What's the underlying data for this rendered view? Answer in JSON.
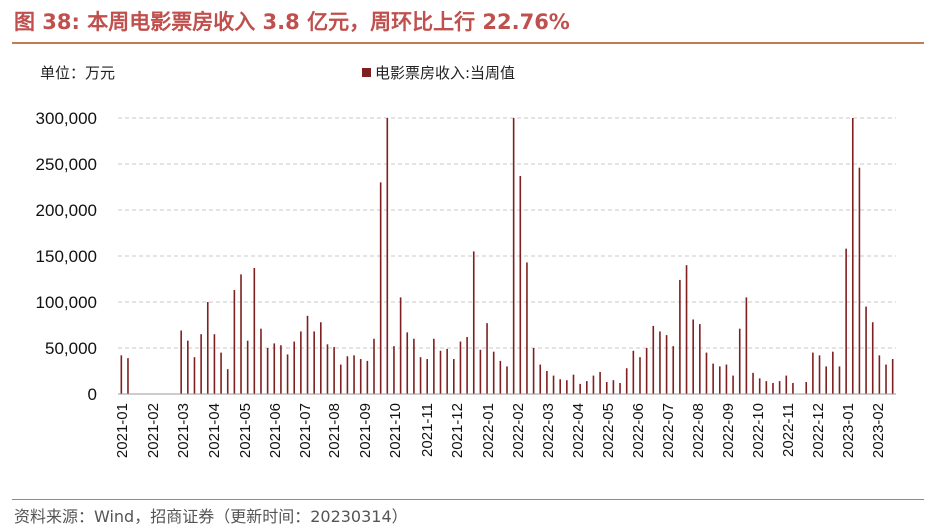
{
  "header": {
    "figure_no": "图 38:",
    "title": "本周电影票房收入 3.8 亿元，周环比上行 22.76%"
  },
  "footer": {
    "source": "资料来源：Wind，招商证券（更新时间：20230314）"
  },
  "chart_data": {
    "type": "bar",
    "unit_label": "单位：万元",
    "legend": [
      {
        "name": "电影票房收入:当周值",
        "color": "#7f1f1f"
      }
    ],
    "legend_placement": "top-center",
    "ylim": [
      0,
      300000
    ],
    "yticks": [
      0,
      50000,
      100000,
      150000,
      200000,
      250000,
      300000
    ],
    "ytick_labels": [
      "0",
      "50,000",
      "100,000",
      "150,000",
      "200,000",
      "250,000",
      "300,000"
    ],
    "grid": "horizontal-dashed",
    "x_tick_labels": [
      "2021-01",
      "2021-02",
      "2021-03",
      "2021-04",
      "2021-05",
      "2021-06",
      "2021-07",
      "2021-08",
      "2021-09",
      "2021-10",
      "2021-11",
      "2021-12",
      "2022-01",
      "2022-02",
      "2022-03",
      "2022-04",
      "2022-05",
      "2022-06",
      "2022-07",
      "2022-08",
      "2022-09",
      "2022-10",
      "2022-11",
      "2022-12",
      "2023-01",
      "2023-02"
    ],
    "series": [
      {
        "name": "电影票房收入:当周值",
        "color": "#7f1f1f",
        "values": [
          42000,
          39000,
          0,
          0,
          0,
          0,
          0,
          0,
          0,
          69000,
          58000,
          40000,
          65000,
          100000,
          65000,
          45000,
          27000,
          113000,
          130000,
          58000,
          137000,
          71000,
          50000,
          55000,
          53000,
          43000,
          57000,
          68000,
          85000,
          68000,
          78000,
          54000,
          51000,
          32000,
          41000,
          42000,
          38000,
          36000,
          60000,
          230000,
          300000,
          52000,
          105000,
          67000,
          60000,
          40000,
          38000,
          60000,
          47000,
          49000,
          38000,
          57000,
          62000,
          155000,
          48000,
          77000,
          46000,
          36000,
          30000,
          300000,
          237000,
          143000,
          50000,
          32000,
          25000,
          20000,
          16000,
          15000,
          21000,
          11000,
          14000,
          20000,
          24000,
          13000,
          15000,
          12000,
          28000,
          47000,
          40000,
          50000,
          74000,
          68000,
          64000,
          52000,
          124000,
          140000,
          81000,
          76000,
          45000,
          33000,
          30000,
          32000,
          20000,
          71000,
          105000,
          23000,
          17000,
          14000,
          12000,
          14000,
          20000,
          12000,
          0,
          13000,
          45000,
          42000,
          30000,
          46000,
          30000,
          158000,
          300000,
          246000,
          95000,
          78000,
          42000,
          32000,
          38000
        ]
      }
    ]
  }
}
